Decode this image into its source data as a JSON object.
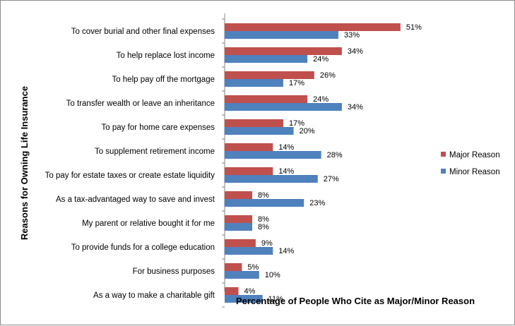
{
  "chart_data": {
    "type": "bar",
    "orientation": "horizontal",
    "title": "",
    "xlabel": "Percentage of People Who Cite as Major/Minor Reason",
    "ylabel": "Reasons for Owning Life Insurance",
    "categories": [
      "To cover burial and other final expenses",
      "To help replace lost income",
      "To help pay off the mortgage",
      "To transfer wealth or leave an inheritance",
      "To pay for home care expenses",
      "To supplement retirement income",
      "To pay for estate taxes or create estate liquidity",
      "As a tax-advantaged way to save and invest",
      "My parent or relative bought it for me",
      "To provide funds for a college education",
      "For business purposes",
      "As a way to make a charitable gift"
    ],
    "series": [
      {
        "name": "Major Reason",
        "color": "#c0504d",
        "values": [
          51,
          34,
          26,
          24,
          17,
          14,
          14,
          8,
          8,
          9,
          5,
          4
        ]
      },
      {
        "name": "Minor Reason",
        "color": "#4f81bd",
        "values": [
          33,
          24,
          17,
          34,
          20,
          28,
          27,
          23,
          8,
          14,
          10,
          11
        ]
      }
    ],
    "value_suffix": "%",
    "xlim": [
      0,
      60
    ],
    "grid": false,
    "legend_position": "right"
  }
}
